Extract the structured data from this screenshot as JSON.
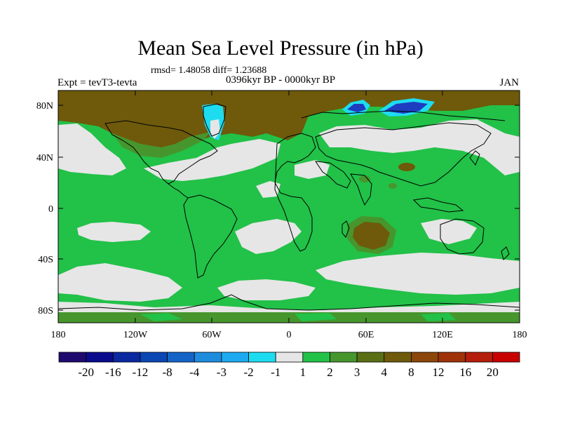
{
  "title": "Mean Sea Level Pressure (in hPa)",
  "stats": "rmsd= 1.48058 diff= 1.23688",
  "experiment": "Expt = tevT3-tevta",
  "period": "0396kyr BP - 0000kyr BP",
  "month": "JAN",
  "axes": {
    "lat_ticks": [
      "80N",
      "40N",
      "0",
      "40S",
      "80S"
    ],
    "lon_ticks": [
      "180",
      "120W",
      "60W",
      "0",
      "60E",
      "120E",
      "180"
    ]
  },
  "colorbar": {
    "labels": [
      "-20",
      "-16",
      "-12",
      "-8",
      "-4",
      "-3",
      "-2",
      "-1",
      "1",
      "2",
      "3",
      "4",
      "8",
      "12",
      "16",
      "20"
    ],
    "colors": [
      "#1e0a6e",
      "#0a0a8c",
      "#0a28a0",
      "#0a46b4",
      "#1464c8",
      "#1e8cdc",
      "#1eaaf0",
      "#1edcf0",
      "#e6e6e6",
      "#22c148",
      "#46962d",
      "#5a6e14",
      "#6e5a0a",
      "#8c460a",
      "#a0320a",
      "#b41e0a",
      "#c80000"
    ]
  },
  "colors": {
    "green": "#22c148",
    "white": "#e6e6e6",
    "brown": "#6e5a0a",
    "olive": "#46962d",
    "cyan": "#1edcf0",
    "blue": "#1e3cbf"
  }
}
